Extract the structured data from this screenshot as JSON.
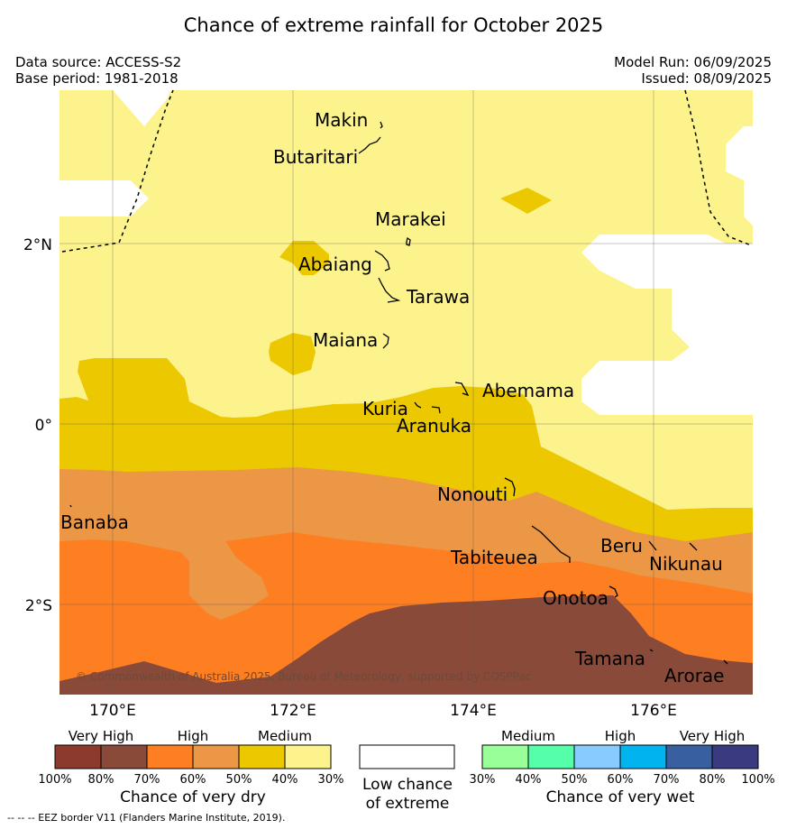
{
  "title": "Chance of extreme rainfall for October 2025",
  "header": {
    "data_source": "Data source: ACCESS-S2",
    "base_period": "Base period: 1981-2018",
    "model_run": "Model Run: 06/09/2025",
    "issued": "Issued: 08/09/2025"
  },
  "map": {
    "lat_labels": [
      "2°N",
      "0°",
      "2°S"
    ],
    "lon_labels": [
      "170°E",
      "172°E",
      "174°E",
      "176°E"
    ],
    "places": [
      "Makin",
      "Butaritari",
      "Marakei",
      "Abaiang",
      "Tarawa",
      "Maiana",
      "Abemama",
      "Kuria",
      "Aranuka",
      "Nonouti",
      "Banaba",
      "Beru",
      "Tabiteuea",
      "Nikunau",
      "Onotoa",
      "Tamana",
      "Arorae"
    ],
    "copyright": "© Commonwealth of Australia 2025, Bureau of Meteorology, supported by COSPPac"
  },
  "colors": {
    "medium_dry": "#fcf38c",
    "high_dry_50": "#ecc800",
    "dry_60": "#eb9746",
    "dry_70": "#fe7f22",
    "dry_80": "#8a4a3a",
    "dry_100": "#8c3a2e",
    "low": "#ffffff",
    "wet_30": "#99ff99",
    "wet_40": "#55ffaa",
    "wet_50": "#88ccff",
    "wet_60": "#00b4f0",
    "wet_70": "#3860a0",
    "wet_80": "#3a3a80"
  },
  "legend": {
    "dry": {
      "categories": [
        "Very High",
        "High",
        "Medium"
      ],
      "ticks": [
        "100%",
        "80%",
        "70%",
        "60%",
        "50%",
        "40%",
        "30%"
      ],
      "title": "Chance of very dry"
    },
    "low": {
      "title_line1": "Low chance",
      "title_line2": "of extreme"
    },
    "wet": {
      "categories": [
        "Medium",
        "High",
        "Very High"
      ],
      "ticks": [
        "30%",
        "40%",
        "50%",
        "60%",
        "70%",
        "80%",
        "100%"
      ],
      "title": "Chance of very wet"
    }
  },
  "footer": "--  --  -- EEZ border V11 (Flanders Marine Institute, 2019)."
}
